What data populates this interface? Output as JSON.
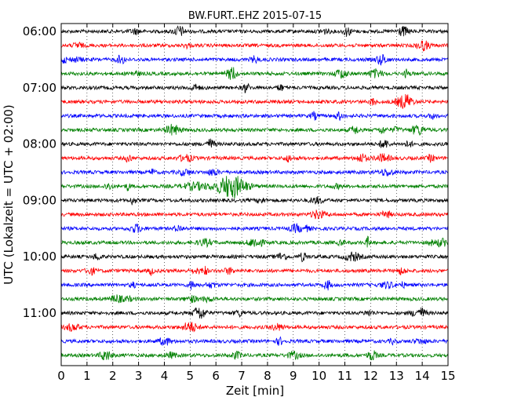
{
  "chart_data": {
    "type": "line",
    "title": "BW.FURT..EHZ 2015-07-15",
    "xlabel": "Zeit  [min]",
    "ylabel": "UTC (Lokalzeit = UTC + 02:00)",
    "xlim": [
      0,
      15
    ],
    "x_ticks": [
      "0",
      "1",
      "2",
      "3",
      "4",
      "5",
      "6",
      "7",
      "8",
      "9",
      "10",
      "11",
      "12",
      "13",
      "14",
      "15"
    ],
    "y_tick_labels": [
      "06:00",
      "07:00",
      "08:00",
      "09:00",
      "10:00",
      "11:00"
    ],
    "grid": true,
    "series_colors": [
      "#000000",
      "#ff0000",
      "#0000ff",
      "#008000"
    ],
    "traces": [
      {
        "start": "06:00",
        "color": "#000000"
      },
      {
        "start": "06:15",
        "color": "#ff0000"
      },
      {
        "start": "06:30",
        "color": "#0000ff"
      },
      {
        "start": "06:45",
        "color": "#008000"
      },
      {
        "start": "07:00",
        "color": "#000000"
      },
      {
        "start": "07:15",
        "color": "#ff0000"
      },
      {
        "start": "07:30",
        "color": "#0000ff"
      },
      {
        "start": "07:45",
        "color": "#008000"
      },
      {
        "start": "08:00",
        "color": "#000000"
      },
      {
        "start": "08:15",
        "color": "#ff0000"
      },
      {
        "start": "08:30",
        "color": "#0000ff"
      },
      {
        "start": "08:45",
        "color": "#008000"
      },
      {
        "start": "09:00",
        "color": "#000000"
      },
      {
        "start": "09:15",
        "color": "#ff0000"
      },
      {
        "start": "09:30",
        "color": "#0000ff"
      },
      {
        "start": "09:45",
        "color": "#008000"
      },
      {
        "start": "10:00",
        "color": "#000000"
      },
      {
        "start": "10:15",
        "color": "#ff0000"
      },
      {
        "start": "10:30",
        "color": "#0000ff"
      },
      {
        "start": "10:45",
        "color": "#008000"
      },
      {
        "start": "11:00",
        "color": "#000000"
      },
      {
        "start": "11:15",
        "color": "#ff0000"
      },
      {
        "start": "11:30",
        "color": "#0000ff"
      },
      {
        "start": "11:45",
        "color": "#008000"
      }
    ],
    "events": [
      {
        "trace": 11,
        "t_min": 6.6,
        "amplitude": "large",
        "color": "#008000"
      }
    ]
  }
}
